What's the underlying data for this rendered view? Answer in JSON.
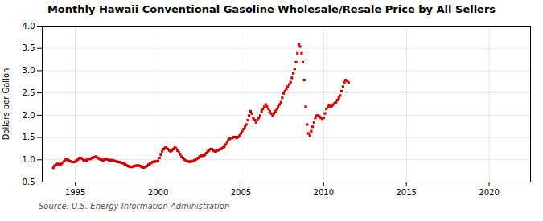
{
  "chart_data": {
    "type": "scatter",
    "title": "Monthly Hawaii Conventional Gasoline Wholesale/Resale Price by All Sellers",
    "ylabel": "Dollars per Gallon",
    "annotations": [
      "Source: U.S. Energy Information Administration"
    ],
    "color": "#cc0000",
    "marker": "square",
    "grid": true,
    "xlim": [
      1993.0,
      2022.5
    ],
    "xticks": [
      1995,
      2000,
      2005,
      2010,
      2015,
      2020
    ],
    "ylim": [
      0.5,
      4.0
    ],
    "yticks": [
      0.5,
      {
        "value": 1.0,
        "label": "1.0"
      },
      1.5,
      {
        "value": 2.0,
        "label": "2.0"
      },
      2.5,
      {
        "value": 3.0,
        "label": "3.0"
      },
      3.5,
      {
        "value": 4.0,
        "label": "4.0"
      }
    ],
    "x": [
      1993.67,
      1993.75,
      1993.83,
      1993.92,
      1994.0,
      1994.08,
      1994.17,
      1994.25,
      1994.33,
      1994.42,
      1994.5,
      1994.58,
      1994.67,
      1994.75,
      1994.83,
      1994.92,
      1995.0,
      1995.08,
      1995.17,
      1995.25,
      1995.33,
      1995.42,
      1995.5,
      1995.58,
      1995.67,
      1995.75,
      1995.83,
      1995.92,
      1996.0,
      1996.08,
      1996.17,
      1996.25,
      1996.33,
      1996.42,
      1996.5,
      1996.58,
      1996.67,
      1996.75,
      1996.83,
      1996.92,
      1997.0,
      1997.08,
      1997.17,
      1997.25,
      1997.33,
      1997.42,
      1997.5,
      1997.58,
      1997.67,
      1997.75,
      1997.83,
      1997.92,
      1998.0,
      1998.08,
      1998.17,
      1998.25,
      1998.33,
      1998.42,
      1998.5,
      1998.58,
      1998.67,
      1998.75,
      1998.83,
      1998.92,
      1999.0,
      1999.08,
      1999.17,
      1999.25,
      1999.33,
      1999.42,
      1999.5,
      1999.58,
      1999.67,
      1999.75,
      1999.83,
      1999.92,
      2000.0,
      2000.08,
      2000.17,
      2000.25,
      2000.33,
      2000.42,
      2000.5,
      2000.58,
      2000.67,
      2000.75,
      2000.83,
      2000.92,
      2001.0,
      2001.08,
      2001.17,
      2001.25,
      2001.33,
      2001.42,
      2001.5,
      2001.58,
      2001.67,
      2001.75,
      2001.83,
      2001.92,
      2002.0,
      2002.08,
      2002.17,
      2002.25,
      2002.33,
      2002.42,
      2002.5,
      2002.58,
      2002.67,
      2002.75,
      2002.83,
      2002.92,
      2003.0,
      2003.08,
      2003.17,
      2003.25,
      2003.33,
      2003.42,
      2003.5,
      2003.58,
      2003.67,
      2003.75,
      2003.83,
      2003.92,
      2004.0,
      2004.08,
      2004.17,
      2004.25,
      2004.33,
      2004.42,
      2004.5,
      2004.58,
      2004.67,
      2004.75,
      2004.83,
      2004.92,
      2005.0,
      2005.08,
      2005.17,
      2005.25,
      2005.33,
      2005.42,
      2005.5,
      2005.58,
      2005.67,
      2005.75,
      2005.83,
      2005.92,
      2006.0,
      2006.08,
      2006.17,
      2006.25,
      2006.33,
      2006.42,
      2006.5,
      2006.58,
      2006.67,
      2006.75,
      2006.83,
      2006.92,
      2007.0,
      2007.08,
      2007.17,
      2007.25,
      2007.33,
      2007.42,
      2007.5,
      2007.58,
      2007.67,
      2007.75,
      2007.83,
      2007.92,
      2008.0,
      2008.08,
      2008.17,
      2008.25,
      2008.33,
      2008.42,
      2008.5,
      2008.58,
      2008.67,
      2008.75,
      2008.83,
      2008.92,
      2009.0,
      2009.08,
      2009.17,
      2009.25,
      2009.33,
      2009.42,
      2009.5,
      2009.58,
      2009.67,
      2009.75,
      2009.83,
      2009.92,
      2010.0,
      2010.08,
      2010.17,
      2010.25,
      2010.33,
      2010.42,
      2010.5,
      2010.58,
      2010.67,
      2010.75,
      2010.83,
      2010.92,
      2011.0,
      2011.08,
      2011.17,
      2011.25,
      2011.33,
      2011.42,
      2011.5
    ],
    "values": [
      0.82,
      0.87,
      0.89,
      0.91,
      0.9,
      0.89,
      0.91,
      0.94,
      0.97,
      1.0,
      1.01,
      0.99,
      0.97,
      0.96,
      0.95,
      0.95,
      0.96,
      0.99,
      1.01,
      1.04,
      1.04,
      1.02,
      0.99,
      0.98,
      0.99,
      1.01,
      1.02,
      1.02,
      1.04,
      1.05,
      1.06,
      1.07,
      1.05,
      1.03,
      1.01,
      1.0,
      0.99,
      1.0,
      1.02,
      1.01,
      1.0,
      0.99,
      0.99,
      0.99,
      0.98,
      0.97,
      0.96,
      0.95,
      0.95,
      0.94,
      0.93,
      0.92,
      0.9,
      0.88,
      0.86,
      0.85,
      0.84,
      0.84,
      0.85,
      0.86,
      0.87,
      0.87,
      0.87,
      0.86,
      0.84,
      0.83,
      0.83,
      0.84,
      0.86,
      0.89,
      0.91,
      0.93,
      0.95,
      0.96,
      0.96,
      0.97,
      0.97,
      1.04,
      1.11,
      1.19,
      1.24,
      1.27,
      1.27,
      1.24,
      1.21,
      1.19,
      1.21,
      1.24,
      1.27,
      1.26,
      1.21,
      1.17,
      1.12,
      1.07,
      1.04,
      1.01,
      0.98,
      0.97,
      0.96,
      0.96,
      0.96,
      0.97,
      0.98,
      1.0,
      1.02,
      1.04,
      1.07,
      1.09,
      1.09,
      1.09,
      1.11,
      1.15,
      1.19,
      1.21,
      1.24,
      1.24,
      1.21,
      1.19,
      1.19,
      1.21,
      1.22,
      1.24,
      1.25,
      1.27,
      1.29,
      1.34,
      1.39,
      1.44,
      1.47,
      1.49,
      1.49,
      1.51,
      1.51,
      1.49,
      1.51,
      1.54,
      1.59,
      1.64,
      1.69,
      1.74,
      1.79,
      1.89,
      1.99,
      2.09,
      2.04,
      1.94,
      1.89,
      1.84,
      1.89,
      1.94,
      1.99,
      2.09,
      2.14,
      2.19,
      2.24,
      2.19,
      2.14,
      2.09,
      2.04,
      1.99,
      2.04,
      2.09,
      2.14,
      2.19,
      2.24,
      2.29,
      2.39,
      2.49,
      2.54,
      2.59,
      2.64,
      2.69,
      2.74,
      2.84,
      2.94,
      3.04,
      3.19,
      3.39,
      3.59,
      3.54,
      3.39,
      3.19,
      2.79,
      2.19,
      1.79,
      1.59,
      1.54,
      1.64,
      1.74,
      1.84,
      1.94,
      1.99,
      1.99,
      1.97,
      1.94,
      1.92,
      1.94,
      2.04,
      2.14,
      2.19,
      2.21,
      2.19,
      2.21,
      2.24,
      2.27,
      2.29,
      2.34,
      2.39,
      2.44,
      2.54,
      2.64,
      2.74,
      2.79,
      2.77,
      2.74
    ]
  }
}
